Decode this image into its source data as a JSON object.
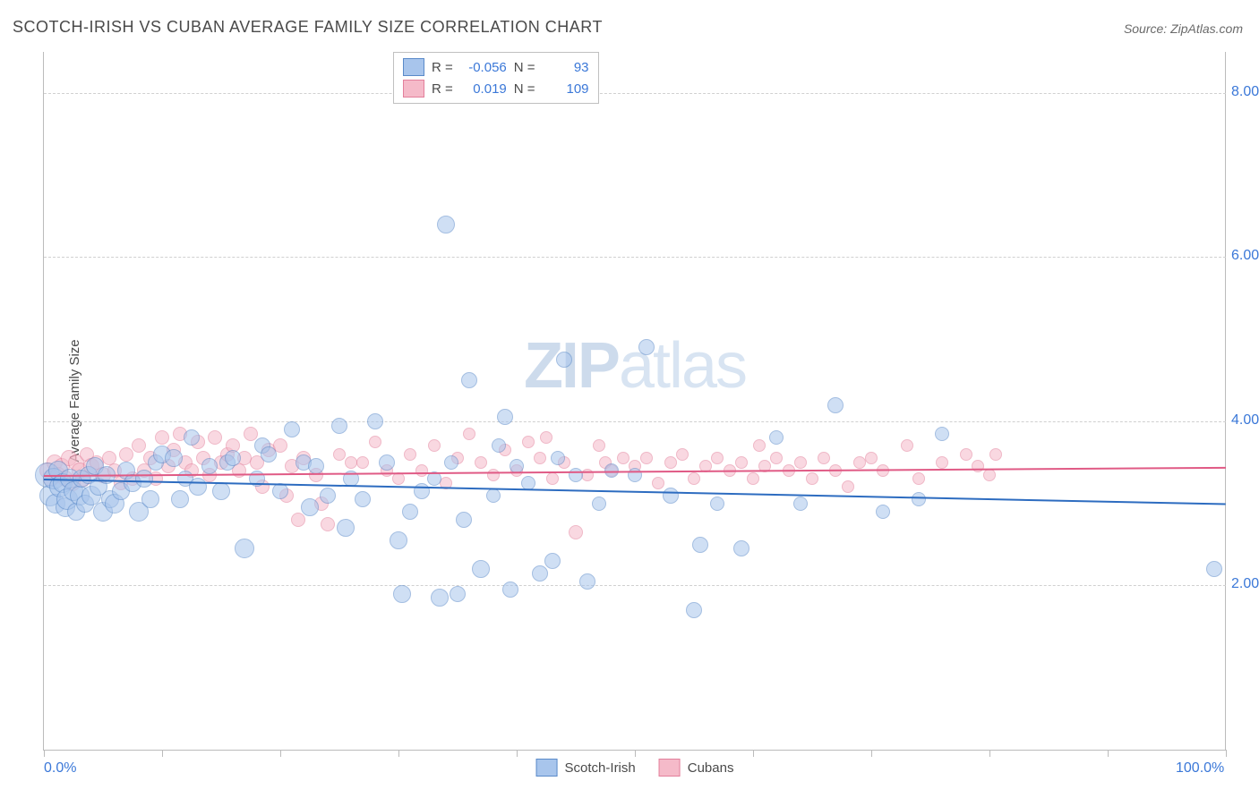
{
  "title": "SCOTCH-IRISH VS CUBAN AVERAGE FAMILY SIZE CORRELATION CHART",
  "source": "Source: ZipAtlas.com",
  "y_axis_title": "Average Family Size",
  "watermark": {
    "bold": "ZIP",
    "light": "atlas"
  },
  "chart": {
    "type": "scatter",
    "xlim": [
      0,
      100
    ],
    "ylim": [
      0,
      8.5
    ],
    "yticks": [
      2.0,
      4.0,
      6.0,
      8.0
    ],
    "ytick_labels": [
      "2.00",
      "4.00",
      "6.00",
      "8.00"
    ],
    "xtick_positions": [
      0,
      10,
      20,
      30,
      40,
      50,
      60,
      70,
      80,
      90,
      100
    ],
    "xtick_labels": {
      "0": "0.0%",
      "100": "100.0%"
    },
    "background_color": "#ffffff",
    "grid_color": "#d0d0d0",
    "axis_color": "#bbbbbb",
    "series": [
      {
        "name": "Scotch-Irish",
        "fill": "#a8c5ec",
        "stroke": "#5a8ac9",
        "fill_opacity": 0.55,
        "marker_radius_min": 7,
        "marker_radius_max": 13,
        "trend": {
          "y_at_x0": 3.3,
          "y_at_x100": 3.0,
          "color": "#2d6cc0",
          "width": 2
        },
        "R": "-0.056",
        "N": "93",
        "points": [
          [
            0.3,
            3.35,
            13
          ],
          [
            0.5,
            3.1,
            11
          ],
          [
            0.8,
            3.3,
            11
          ],
          [
            1,
            3.0,
            10
          ],
          [
            1.2,
            3.4,
            10
          ],
          [
            1.4,
            3.2,
            11
          ],
          [
            1.6,
            3.25,
            10
          ],
          [
            1.8,
            2.95,
            10
          ],
          [
            2,
            3.05,
            11
          ],
          [
            2.2,
            3.3,
            10
          ],
          [
            2.5,
            3.15,
            10
          ],
          [
            2.7,
            2.9,
            9
          ],
          [
            3,
            3.1,
            10
          ],
          [
            3.2,
            3.3,
            9
          ],
          [
            3.5,
            3.0,
            9
          ],
          [
            3.8,
            3.35,
            9
          ],
          [
            4,
            3.1,
            10
          ],
          [
            4.3,
            3.45,
            9
          ],
          [
            4.6,
            3.2,
            9
          ],
          [
            5,
            2.9,
            10
          ],
          [
            5.3,
            3.35,
            9
          ],
          [
            5.6,
            3.05,
            9
          ],
          [
            6,
            3.0,
            10
          ],
          [
            6.5,
            3.15,
            9
          ],
          [
            7,
            3.4,
            9
          ],
          [
            7.5,
            3.25,
            9
          ],
          [
            8,
            2.9,
            10
          ],
          [
            8.5,
            3.3,
            9
          ],
          [
            9,
            3.05,
            9
          ],
          [
            9.5,
            3.5,
            8
          ],
          [
            10,
            3.6,
            9
          ],
          [
            11,
            3.55,
            9
          ],
          [
            11.5,
            3.05,
            9
          ],
          [
            12,
            3.3,
            8
          ],
          [
            12.5,
            3.8,
            8
          ],
          [
            13,
            3.2,
            9
          ],
          [
            14,
            3.45,
            8
          ],
          [
            15,
            3.15,
            9
          ],
          [
            15.5,
            3.5,
            8
          ],
          [
            16,
            3.55,
            8
          ],
          [
            17,
            2.45,
            10
          ],
          [
            18,
            3.3,
            8
          ],
          [
            18.5,
            3.7,
            8
          ],
          [
            19,
            3.6,
            8
          ],
          [
            20,
            3.15,
            8
          ],
          [
            21,
            3.9,
            8
          ],
          [
            22,
            3.5,
            8
          ],
          [
            22.5,
            2.95,
            9
          ],
          [
            23,
            3.45,
            8
          ],
          [
            24,
            3.1,
            8
          ],
          [
            25,
            3.95,
            8
          ],
          [
            25.5,
            2.7,
            9
          ],
          [
            26,
            3.3,
            8
          ],
          [
            27,
            3.05,
            8
          ],
          [
            28,
            4.0,
            8
          ],
          [
            29,
            3.5,
            8
          ],
          [
            30,
            2.55,
            9
          ],
          [
            30.3,
            1.9,
            9
          ],
          [
            31,
            2.9,
            8
          ],
          [
            32,
            3.15,
            8
          ],
          [
            33,
            3.3,
            7
          ],
          [
            33.5,
            1.85,
            9
          ],
          [
            34,
            6.4,
            9
          ],
          [
            34.5,
            3.5,
            7
          ],
          [
            35,
            1.9,
            8
          ],
          [
            35.5,
            2.8,
            8
          ],
          [
            36,
            4.5,
            8
          ],
          [
            37,
            2.2,
            9
          ],
          [
            38,
            3.1,
            7
          ],
          [
            38.5,
            3.7,
            7
          ],
          [
            39,
            4.05,
            8
          ],
          [
            39.5,
            1.95,
            8
          ],
          [
            40,
            3.45,
            7
          ],
          [
            41,
            3.25,
            7
          ],
          [
            42,
            2.15,
            8
          ],
          [
            43,
            2.3,
            8
          ],
          [
            43.5,
            3.55,
            7
          ],
          [
            44,
            4.75,
            8
          ],
          [
            45,
            3.35,
            7
          ],
          [
            46,
            2.05,
            8
          ],
          [
            47,
            3.0,
            7
          ],
          [
            48,
            3.4,
            7
          ],
          [
            50,
            3.35,
            7
          ],
          [
            51,
            4.9,
            8
          ],
          [
            53,
            3.1,
            8
          ],
          [
            55,
            1.7,
            8
          ],
          [
            55.5,
            2.5,
            8
          ],
          [
            57,
            3.0,
            7
          ],
          [
            59,
            2.45,
            8
          ],
          [
            62,
            3.8,
            7
          ],
          [
            64,
            3.0,
            7
          ],
          [
            67,
            4.2,
            8
          ],
          [
            71,
            2.9,
            7
          ],
          [
            74,
            3.05,
            7
          ],
          [
            76,
            3.85,
            7
          ],
          [
            99,
            2.2,
            8
          ]
        ]
      },
      {
        "name": "Cubans",
        "fill": "#f5bac9",
        "stroke": "#e37f9b",
        "fill_opacity": 0.55,
        "marker_radius_min": 6,
        "marker_radius_max": 9,
        "trend": {
          "y_at_x0": 3.35,
          "y_at_x100": 3.45,
          "color": "#e05a85",
          "width": 2
        },
        "R": "0.019",
        "N": "109",
        "points": [
          [
            0.3,
            3.4,
            8
          ],
          [
            0.6,
            3.3,
            8
          ],
          [
            0.9,
            3.5,
            8
          ],
          [
            1.2,
            3.35,
            8
          ],
          [
            1.5,
            3.45,
            8
          ],
          [
            1.8,
            3.3,
            8
          ],
          [
            2.1,
            3.55,
            8
          ],
          [
            2.4,
            3.25,
            8
          ],
          [
            2.7,
            3.5,
            8
          ],
          [
            3,
            3.4,
            8
          ],
          [
            3.3,
            3.3,
            8
          ],
          [
            3.6,
            3.6,
            7
          ],
          [
            4,
            3.45,
            8
          ],
          [
            4.5,
            3.5,
            7
          ],
          [
            5,
            3.35,
            8
          ],
          [
            5.5,
            3.55,
            7
          ],
          [
            6,
            3.4,
            7
          ],
          [
            6.5,
            3.25,
            7
          ],
          [
            7,
            3.6,
            7
          ],
          [
            7.5,
            3.3,
            7
          ],
          [
            8,
            3.7,
            7
          ],
          [
            8.5,
            3.4,
            7
          ],
          [
            9,
            3.55,
            7
          ],
          [
            9.5,
            3.3,
            7
          ],
          [
            10,
            3.8,
            7
          ],
          [
            10.5,
            3.45,
            7
          ],
          [
            11,
            3.65,
            7
          ],
          [
            11.5,
            3.85,
            7
          ],
          [
            12,
            3.5,
            7
          ],
          [
            12.5,
            3.4,
            7
          ],
          [
            13,
            3.75,
            7
          ],
          [
            13.5,
            3.55,
            7
          ],
          [
            14,
            3.35,
            7
          ],
          [
            14.5,
            3.8,
            7
          ],
          [
            15,
            3.5,
            7
          ],
          [
            15.5,
            3.6,
            7
          ],
          [
            16,
            3.7,
            7
          ],
          [
            16.5,
            3.4,
            7
          ],
          [
            17,
            3.55,
            7
          ],
          [
            17.5,
            3.85,
            7
          ],
          [
            18,
            3.5,
            7
          ],
          [
            18.5,
            3.2,
            7
          ],
          [
            19,
            3.65,
            7
          ],
          [
            20,
            3.7,
            7
          ],
          [
            20.5,
            3.1,
            7
          ],
          [
            21,
            3.45,
            7
          ],
          [
            21.5,
            2.8,
            7
          ],
          [
            22,
            3.55,
            7
          ],
          [
            23,
            3.35,
            7
          ],
          [
            23.5,
            3.0,
            7
          ],
          [
            24,
            2.75,
            7
          ],
          [
            25,
            3.6,
            6
          ],
          [
            26,
            3.5,
            6
          ],
          [
            27,
            3.5,
            6
          ],
          [
            28,
            3.75,
            6
          ],
          [
            29,
            3.4,
            6
          ],
          [
            30,
            3.3,
            6
          ],
          [
            31,
            3.6,
            6
          ],
          [
            32,
            3.4,
            6
          ],
          [
            33,
            3.7,
            6
          ],
          [
            34,
            3.25,
            6
          ],
          [
            35,
            3.55,
            6
          ],
          [
            36,
            3.85,
            6
          ],
          [
            37,
            3.5,
            6
          ],
          [
            38,
            3.35,
            6
          ],
          [
            39,
            3.65,
            6
          ],
          [
            40,
            3.4,
            6
          ],
          [
            41,
            3.75,
            6
          ],
          [
            42,
            3.55,
            6
          ],
          [
            42.5,
            3.8,
            6
          ],
          [
            43,
            3.3,
            6
          ],
          [
            44,
            3.5,
            6
          ],
          [
            45,
            2.65,
            7
          ],
          [
            46,
            3.35,
            6
          ],
          [
            47,
            3.7,
            6
          ],
          [
            47.5,
            3.5,
            6
          ],
          [
            48,
            3.4,
            6
          ],
          [
            49,
            3.55,
            6
          ],
          [
            50,
            3.45,
            6
          ],
          [
            51,
            3.55,
            6
          ],
          [
            52,
            3.25,
            6
          ],
          [
            53,
            3.5,
            6
          ],
          [
            54,
            3.6,
            6
          ],
          [
            55,
            3.3,
            6
          ],
          [
            56,
            3.45,
            6
          ],
          [
            57,
            3.55,
            6
          ],
          [
            58,
            3.4,
            6
          ],
          [
            59,
            3.5,
            6
          ],
          [
            60,
            3.3,
            6
          ],
          [
            60.5,
            3.7,
            6
          ],
          [
            61,
            3.45,
            6
          ],
          [
            62,
            3.55,
            6
          ],
          [
            63,
            3.4,
            6
          ],
          [
            64,
            3.5,
            6
          ],
          [
            65,
            3.3,
            6
          ],
          [
            66,
            3.55,
            6
          ],
          [
            67,
            3.4,
            6
          ],
          [
            68,
            3.2,
            6
          ],
          [
            69,
            3.5,
            6
          ],
          [
            70,
            3.55,
            6
          ],
          [
            71,
            3.4,
            6
          ],
          [
            73,
            3.7,
            6
          ],
          [
            74,
            3.3,
            6
          ],
          [
            76,
            3.5,
            6
          ],
          [
            78,
            3.6,
            6
          ],
          [
            79,
            3.45,
            6
          ],
          [
            80,
            3.35,
            6
          ],
          [
            80.5,
            3.6,
            6
          ]
        ]
      }
    ]
  },
  "legend": {
    "items": [
      {
        "label": "Scotch-Irish",
        "fill": "#a8c5ec",
        "stroke": "#5a8ac9"
      },
      {
        "label": "Cubans",
        "fill": "#f5bac9",
        "stroke": "#e37f9b"
      }
    ]
  }
}
